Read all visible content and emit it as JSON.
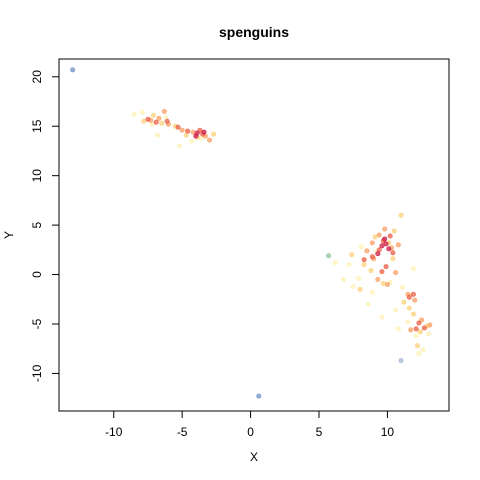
{
  "chart_data": {
    "type": "scatter",
    "title": "spenguins",
    "xlabel": "X",
    "ylabel": "Y",
    "xlim": [
      -14,
      14.5
    ],
    "ylim": [
      -13.8,
      21.8
    ],
    "xticks": [
      -10,
      -5,
      0,
      5,
      10
    ],
    "yticks": [
      -10,
      -5,
      0,
      5,
      10,
      15,
      20
    ],
    "xtick_labels": [
      "-10",
      "-5",
      "0",
      "5",
      "10"
    ],
    "ytick_labels": [
      "-10",
      "-5",
      "0",
      "5",
      "10",
      "15",
      "20"
    ],
    "grid": false,
    "legend": "none",
    "series": [
      {
        "color": "#fef2b6",
        "points": [
          [
            -8.5,
            16.2
          ],
          [
            -7.9,
            16.4
          ],
          [
            -6.8,
            14.1
          ],
          [
            -5.2,
            13.0
          ],
          [
            -6.2,
            15.9
          ],
          [
            -4.3,
            13.5
          ],
          [
            -7.2,
            15.2
          ],
          [
            -3.6,
            13.8
          ],
          [
            6.2,
            1.2
          ],
          [
            6.8,
            -0.5
          ],
          [
            7.2,
            1.0
          ],
          [
            7.5,
            -1.2
          ],
          [
            7.9,
            -0.4
          ],
          [
            8.1,
            2.8
          ],
          [
            8.6,
            -3.0
          ],
          [
            8.9,
            -1.8
          ],
          [
            9.6,
            -4.3
          ],
          [
            10.2,
            -0.8
          ],
          [
            10.6,
            -3.6
          ],
          [
            11.1,
            -1.3
          ],
          [
            11.5,
            -4.8
          ],
          [
            11.9,
            0.6
          ],
          [
            12.1,
            -6.2
          ],
          [
            12.6,
            -7.6
          ],
          [
            12.3,
            -8.0
          ],
          [
            13.0,
            -6.0
          ],
          [
            10.8,
            -5.5
          ],
          [
            9.2,
            2.3
          ]
        ]
      },
      {
        "color": "#fbd17a",
        "points": [
          [
            -7.8,
            15.5
          ],
          [
            -6.5,
            15.3
          ],
          [
            -5.5,
            15.0
          ],
          [
            -4.7,
            14.1
          ],
          [
            -3.9,
            13.9
          ],
          [
            -2.7,
            14.2
          ],
          [
            -7.1,
            16.1
          ],
          [
            7.4,
            2.0
          ],
          [
            8.3,
            1.0
          ],
          [
            8.8,
            0.4
          ],
          [
            9.1,
            3.8
          ],
          [
            10.1,
            3.2
          ],
          [
            10.5,
            4.4
          ],
          [
            11.0,
            6.0
          ],
          [
            11.2,
            -2.8
          ],
          [
            11.6,
            -3.4
          ],
          [
            12.4,
            -5.8
          ],
          [
            12.9,
            -5.2
          ],
          [
            10.4,
            1.6
          ],
          [
            9.7,
            -0.9
          ],
          [
            11.9,
            -4.0
          ],
          [
            8.0,
            -1.5
          ],
          [
            12.2,
            -7.2
          ]
        ]
      },
      {
        "color": "#f9a066",
        "points": [
          [
            -7.3,
            15.6
          ],
          [
            -6.7,
            15.8
          ],
          [
            -6.0,
            15.2
          ],
          [
            -5.0,
            14.6
          ],
          [
            -4.2,
            14.4
          ],
          [
            -3.3,
            14.0
          ],
          [
            -3.0,
            13.6
          ],
          [
            -6.3,
            16.5
          ],
          [
            8.5,
            2.4
          ],
          [
            9.0,
            1.6
          ],
          [
            9.4,
            4.0
          ],
          [
            9.8,
            4.6
          ],
          [
            10.3,
            2.7
          ],
          [
            10.8,
            3.0
          ],
          [
            9.3,
            -0.5
          ],
          [
            10.6,
            0.2
          ],
          [
            11.5,
            -2.0
          ],
          [
            12.0,
            -2.6
          ],
          [
            12.5,
            -4.6
          ],
          [
            13.1,
            -5.1
          ],
          [
            11.7,
            -5.6
          ],
          [
            8.9,
            3.2
          ],
          [
            10.0,
            -1.0
          ]
        ]
      },
      {
        "color": "#ec5f45",
        "points": [
          [
            -6.9,
            15.4
          ],
          [
            -6.1,
            15.5
          ],
          [
            -5.3,
            14.9
          ],
          [
            -4.6,
            14.5
          ],
          [
            -3.7,
            14.6
          ],
          [
            -3.5,
            14.2
          ],
          [
            -7.5,
            15.7
          ],
          [
            8.9,
            1.8
          ],
          [
            9.4,
            2.5
          ],
          [
            9.7,
            3.4
          ],
          [
            10.2,
            3.9
          ],
          [
            9.9,
            0.8
          ],
          [
            9.6,
            0.3
          ],
          [
            11.6,
            -2.3
          ],
          [
            11.9,
            -2.0
          ],
          [
            12.3,
            -4.9
          ],
          [
            12.7,
            -5.4
          ],
          [
            12.1,
            -5.5
          ],
          [
            8.3,
            1.5
          ],
          [
            10.4,
            2.2
          ]
        ]
      },
      {
        "color": "#cc1c49",
        "points": [
          [
            -3.9,
            14.3
          ],
          [
            -3.4,
            14.4
          ],
          [
            -4.0,
            14.0
          ],
          [
            9.6,
            2.9
          ],
          [
            9.9,
            3.1
          ],
          [
            9.3,
            2.1
          ],
          [
            10.1,
            2.6
          ],
          [
            9.8,
            3.6
          ]
        ]
      },
      {
        "color": "#6f8fc6",
        "points": [
          [
            -13.0,
            20.7
          ],
          [
            0.6,
            -12.3
          ]
        ]
      },
      {
        "color": "#8fc59a",
        "points": [
          [
            5.7,
            1.9
          ]
        ]
      },
      {
        "color": "#a6b6d8",
        "points": [
          [
            11.0,
            -8.7
          ]
        ]
      }
    ]
  }
}
